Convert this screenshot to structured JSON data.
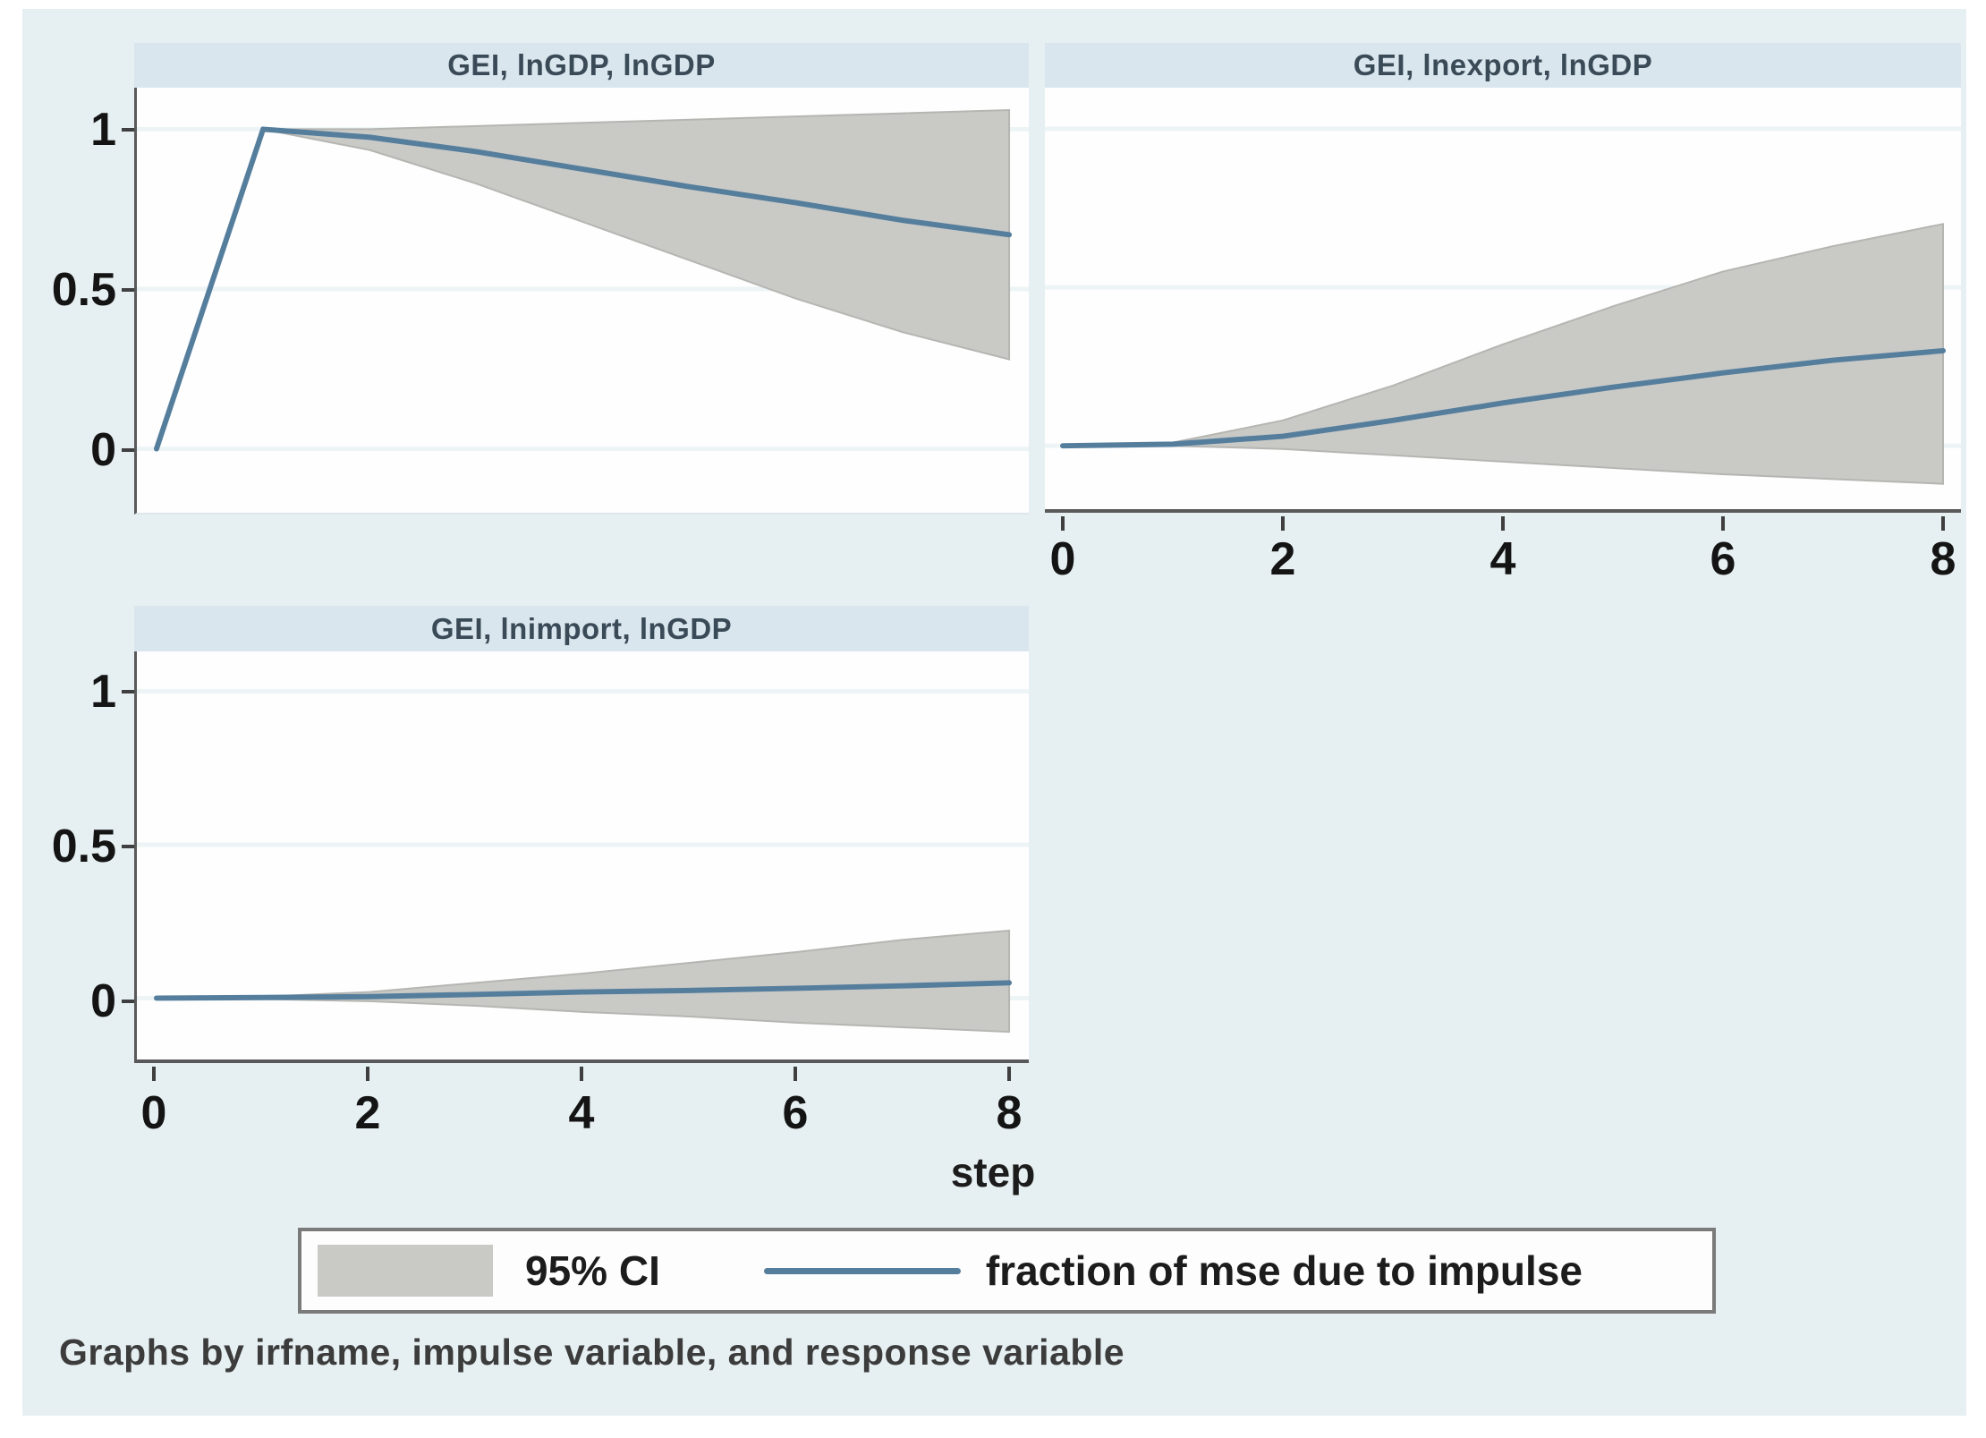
{
  "figure": {
    "caption": "Graphs by irfname, impulse variable, and response variable",
    "x_axis_title": "step"
  },
  "axes": {
    "x_tick_labels": [
      "0",
      "2",
      "4",
      "6",
      "8"
    ],
    "y_tick_labels": [
      "1",
      "0.5",
      "0"
    ],
    "y_gridline_values": [
      1,
      0.5,
      0
    ],
    "x_range": [
      0,
      8
    ]
  },
  "legend": {
    "ci_label": "95% CI",
    "line_label": "fraction of mse due to impulse"
  },
  "colors": {
    "canvas_bg": "#e6eff1",
    "strip_bg": "#d9e6ee",
    "plot_bg": "#fefefe",
    "grid": "#edf4f6",
    "axis": "#595959",
    "band": "#c9c9c6",
    "band_edge": "#b5b5b2",
    "line": "#557e9d",
    "tick_text": "#141414",
    "title_text": "#3a4a57"
  },
  "chart_data": [
    {
      "type": "area",
      "title": "GEI, lnGDP, lnGDP",
      "x": [
        0,
        1,
        2,
        3,
        4,
        5,
        6,
        7,
        8
      ],
      "xlabel": "step",
      "ylim": [
        -0.2,
        1.13
      ],
      "series": [
        {
          "name": "fraction of mse due to impulse",
          "values": [
            0,
            1,
            0.975,
            0.93,
            0.875,
            0.82,
            0.77,
            0.715,
            0.67
          ]
        },
        {
          "name": "95% CI upper",
          "values": [
            0,
            1,
            1.0,
            1.01,
            1.02,
            1.03,
            1.04,
            1.05,
            1.06
          ]
        },
        {
          "name": "95% CI lower",
          "values": [
            0,
            1,
            0.935,
            0.83,
            0.71,
            0.59,
            0.47,
            0.365,
            0.28
          ]
        }
      ]
    },
    {
      "type": "area",
      "title": "GEI, lnexport, lnGDP",
      "x": [
        0,
        1,
        2,
        3,
        4,
        5,
        6,
        7,
        8
      ],
      "xlabel": "step",
      "ylim": [
        -0.2,
        1.13
      ],
      "series": [
        {
          "name": "fraction of mse due to impulse",
          "values": [
            0,
            0.005,
            0.03,
            0.08,
            0.135,
            0.185,
            0.23,
            0.27,
            0.3
          ]
        },
        {
          "name": "95% CI upper",
          "values": [
            0,
            0.01,
            0.08,
            0.19,
            0.32,
            0.44,
            0.55,
            0.63,
            0.7
          ]
        },
        {
          "name": "95% CI lower",
          "values": [
            0,
            0,
            -0.01,
            -0.03,
            -0.05,
            -0.07,
            -0.09,
            -0.105,
            -0.12
          ]
        }
      ]
    },
    {
      "type": "area",
      "title": "GEI, lnimport, lnGDP",
      "x": [
        0,
        1,
        2,
        3,
        4,
        5,
        6,
        7,
        8
      ],
      "xlabel": "step",
      "ylim": [
        -0.2,
        1.13
      ],
      "series": [
        {
          "name": "fraction of mse due to impulse",
          "values": [
            0,
            0.002,
            0.005,
            0.012,
            0.02,
            0.025,
            0.032,
            0.04,
            0.05
          ]
        },
        {
          "name": "95% CI upper",
          "values": [
            0,
            0.005,
            0.02,
            0.05,
            0.08,
            0.115,
            0.15,
            0.19,
            0.22
          ]
        },
        {
          "name": "95% CI lower",
          "values": [
            0,
            -0.003,
            -0.01,
            -0.025,
            -0.045,
            -0.06,
            -0.08,
            -0.095,
            -0.11
          ]
        }
      ]
    }
  ]
}
